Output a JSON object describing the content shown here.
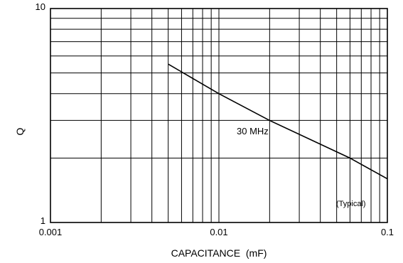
{
  "chart_data": {
    "type": "line",
    "title": "",
    "xlabel": "CAPACITANCE  (mF)",
    "ylabel": "Q",
    "xscale": "log",
    "yscale": "log",
    "xlim": [
      0.001,
      0.1
    ],
    "ylim": [
      1,
      10
    ],
    "grid": true,
    "x_tick_labels": [
      "0.001",
      "0.01",
      "0.1"
    ],
    "y_tick_labels": [
      "1",
      "10"
    ],
    "series": [
      {
        "name": "30 MHz",
        "x": [
          0.005,
          0.01,
          0.02,
          0.06,
          0.1
        ],
        "y": [
          5.5,
          4.0,
          3.0,
          2.0,
          1.6
        ]
      }
    ],
    "annotations": [
      "(Typical)"
    ],
    "colors": {
      "line": "#000000",
      "grid": "#000000",
      "background": "#ffffff"
    }
  }
}
